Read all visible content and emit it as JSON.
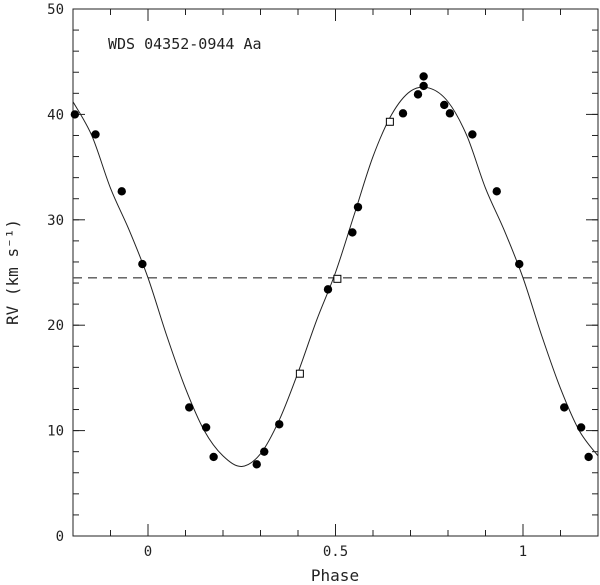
{
  "chart_data": {
    "type": "scatter",
    "title": "WDS 04352-0944 Aa",
    "xlabel": "Phase",
    "ylabel": "RV (km s⁻¹)",
    "xlim": [
      -0.2,
      1.2
    ],
    "ylim": [
      0,
      50
    ],
    "x_major_ticks": [
      0,
      0.5,
      1
    ],
    "x_tick_labels": [
      "0",
      "0.5",
      "1"
    ],
    "x_minor_step": 0.1,
    "y_major_ticks": [
      0,
      10,
      20,
      30,
      40,
      50
    ],
    "y_tick_labels": [
      "0",
      "10",
      "20",
      "30",
      "40",
      "50"
    ],
    "y_minor_step": 2,
    "grid": false,
    "systemic_velocity": 24.5,
    "orbit_curve": {
      "style": "solid",
      "color": "#222222",
      "phase": [
        -0.2,
        -0.15,
        -0.1,
        -0.05,
        0.0,
        0.05,
        0.1,
        0.15,
        0.2,
        0.25,
        0.3,
        0.35,
        0.4,
        0.45,
        0.5,
        0.55,
        0.6,
        0.65,
        0.7,
        0.75,
        0.8,
        0.85,
        0.9,
        0.95,
        1.0,
        1.05,
        1.1,
        1.15,
        1.2
      ],
      "rv": [
        41.2,
        38.0,
        33.0,
        29.0,
        24.5,
        19.0,
        14.0,
        10.0,
        7.6,
        6.6,
        7.8,
        11.0,
        15.5,
        20.5,
        25.0,
        30.5,
        36.0,
        40.0,
        42.2,
        42.5,
        41.2,
        38.0,
        33.0,
        29.0,
        24.5,
        19.0,
        14.0,
        10.0,
        7.6
      ]
    },
    "series": [
      {
        "marker": "filled-circle",
        "color": "#000000",
        "points": [
          [
            -0.195,
            40.0
          ],
          [
            -0.14,
            38.1
          ],
          [
            -0.07,
            32.7
          ],
          [
            -0.015,
            25.8
          ],
          [
            0.11,
            12.2
          ],
          [
            0.155,
            10.3
          ],
          [
            0.175,
            7.5
          ],
          [
            0.29,
            6.8
          ],
          [
            0.31,
            8.0
          ],
          [
            0.35,
            10.6
          ],
          [
            0.48,
            23.4
          ],
          [
            0.545,
            28.8
          ],
          [
            0.56,
            31.2
          ],
          [
            0.68,
            40.1
          ],
          [
            0.72,
            41.9
          ],
          [
            0.735,
            42.7
          ],
          [
            0.735,
            43.6
          ],
          [
            0.79,
            40.9
          ],
          [
            0.805,
            40.1
          ],
          [
            0.865,
            38.1
          ],
          [
            0.93,
            32.7
          ],
          [
            0.99,
            25.8
          ],
          [
            1.11,
            12.2
          ],
          [
            1.155,
            10.3
          ],
          [
            1.175,
            7.5
          ]
        ]
      },
      {
        "marker": "open-square",
        "color": "#000000",
        "points": [
          [
            0.405,
            15.4
          ],
          [
            0.505,
            24.4
          ],
          [
            0.645,
            39.3
          ]
        ]
      }
    ],
    "reference_line": {
      "value": 24.5,
      "style": "dashed",
      "color": "#555555"
    }
  }
}
